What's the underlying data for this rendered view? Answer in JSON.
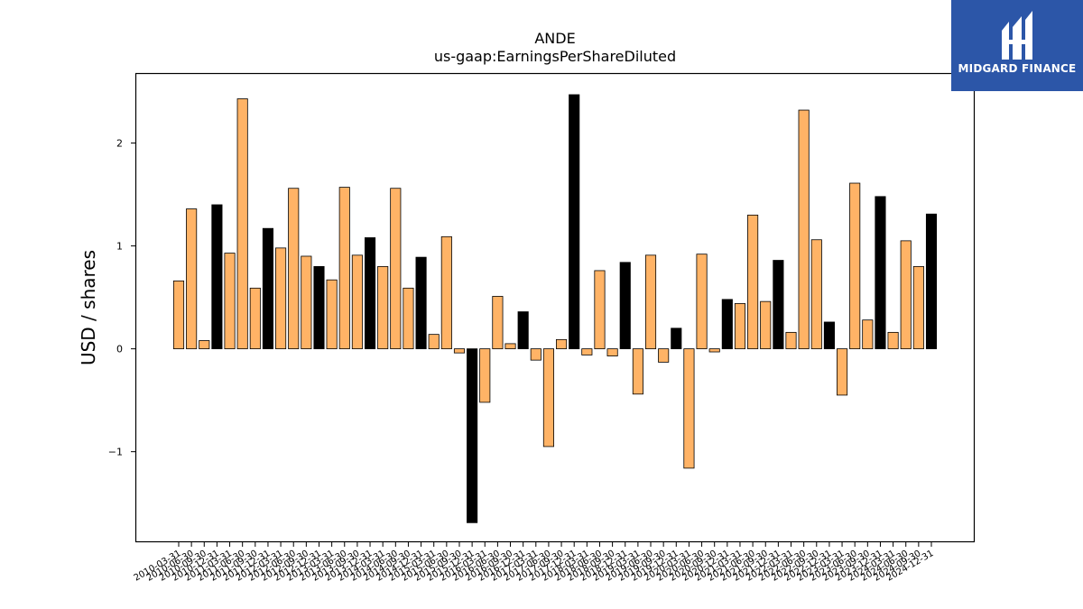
{
  "chart_data": {
    "type": "bar",
    "title": "ANDE",
    "subtitle": "us-gaap:EarningsPerShareDiluted",
    "ylabel": "USD / shares",
    "xlabel": "",
    "ylim": [
      -1.88,
      2.68
    ],
    "yticks": [
      -1,
      0,
      1,
      2
    ],
    "colors": {
      "quarter": "#ffb366",
      "annual": "#000000",
      "edge": "#000000"
    },
    "categories": [
      "2010-03-31",
      "2010-06-30",
      "2010-09-30",
      "2010-12-31",
      "2011-03-31",
      "2011-06-30",
      "2011-09-30",
      "2011-12-31",
      "2012-03-31",
      "2012-06-30",
      "2012-09-30",
      "2012-12-31",
      "2013-03-31",
      "2013-06-30",
      "2013-09-30",
      "2013-12-31",
      "2014-03-31",
      "2014-06-30",
      "2014-09-30",
      "2014-12-31",
      "2015-03-31",
      "2015-06-30",
      "2015-09-30",
      "2015-12-31",
      "2016-03-31",
      "2016-06-30",
      "2016-09-30",
      "2016-12-31",
      "2017-03-31",
      "2017-06-30",
      "2017-09-30",
      "2017-12-31",
      "2018-03-31",
      "2018-06-30",
      "2018-09-30",
      "2018-12-31",
      "2019-03-31",
      "2019-06-30",
      "2019-09-30",
      "2019-12-31",
      "2020-03-31",
      "2020-06-30",
      "2020-09-30",
      "2020-12-31",
      "2021-03-31",
      "2021-06-30",
      "2021-09-30",
      "2021-12-31",
      "2022-03-31",
      "2022-06-30",
      "2022-09-30",
      "2022-12-31",
      "2023-03-31",
      "2023-06-30",
      "2023-09-30",
      "2023-12-31",
      "2024-03-31",
      "2024-06-30",
      "2024-09-30",
      "2024-12-31"
    ],
    "values": [
      0.66,
      1.36,
      0.08,
      1.4,
      0.93,
      2.43,
      0.59,
      1.17,
      0.98,
      1.56,
      0.9,
      0.8,
      0.67,
      1.57,
      0.91,
      1.08,
      0.8,
      1.56,
      0.59,
      0.89,
      0.14,
      1.09,
      -0.04,
      -1.69,
      -0.52,
      0.51,
      0.05,
      0.36,
      -0.11,
      -0.95,
      0.09,
      2.47,
      -0.06,
      0.76,
      -0.07,
      0.84,
      -0.44,
      0.91,
      -0.13,
      0.2,
      -1.16,
      0.92,
      -0.03,
      0.48,
      0.44,
      1.3,
      0.46,
      0.86,
      0.16,
      2.32,
      1.06,
      0.26,
      -0.45,
      1.61,
      0.28,
      1.48,
      0.16,
      1.05,
      0.8,
      1.31
    ],
    "annual": [
      false,
      false,
      false,
      true,
      false,
      false,
      false,
      true,
      false,
      false,
      false,
      true,
      false,
      false,
      false,
      true,
      false,
      false,
      false,
      true,
      false,
      false,
      false,
      true,
      false,
      false,
      false,
      true,
      false,
      false,
      false,
      true,
      false,
      false,
      false,
      true,
      false,
      false,
      false,
      true,
      false,
      false,
      false,
      true,
      false,
      false,
      false,
      true,
      false,
      false,
      false,
      true,
      false,
      false,
      false,
      true,
      false,
      false,
      false,
      true
    ]
  },
  "logo": {
    "text": "MIDGARD FINANCE",
    "icon": "midgard-logo-icon"
  }
}
